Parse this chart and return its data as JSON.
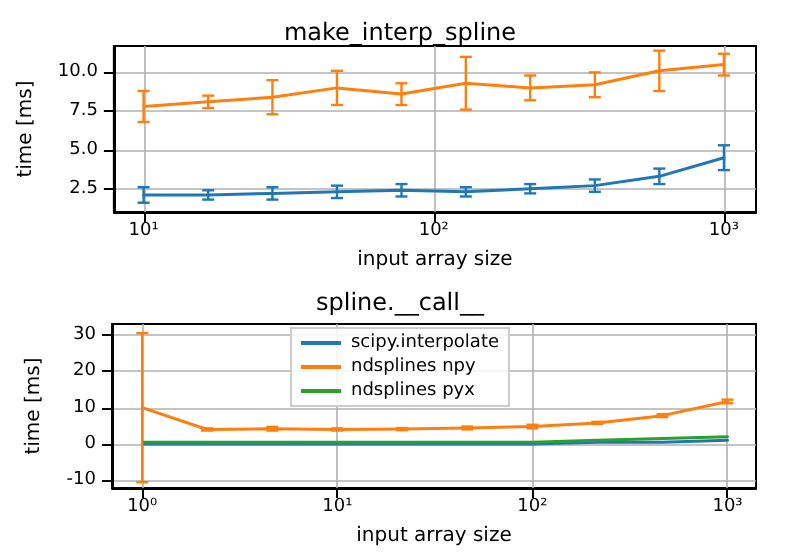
{
  "chart_data": [
    {
      "type": "line",
      "title": "make_interp_spline",
      "xlabel": "input array size",
      "ylabel": "time [ms]",
      "log": "x",
      "grid": true,
      "legend": false,
      "marker": "none",
      "x": [
        10,
        16.7,
        27.8,
        46.4,
        77.4,
        129,
        215,
        359,
        599,
        1000
      ],
      "xlim": [
        7.9,
        1290
      ],
      "xticks": [
        {
          "value": 10,
          "label": "10¹"
        },
        {
          "value": 100,
          "label": "10²"
        },
        {
          "value": 1000,
          "label": "10³"
        }
      ],
      "ylim": [
        1.0,
        11.7
      ],
      "yticks": [
        {
          "value": 2.5,
          "label": "2.5"
        },
        {
          "value": 5,
          "label": "5.0"
        },
        {
          "value": 7.5,
          "label": "7.5"
        },
        {
          "value": 10,
          "label": "10.0"
        }
      ],
      "series": [
        {
          "color": "#1f77b4",
          "values": [
            2.1,
            2.1,
            2.2,
            2.3,
            2.4,
            2.3,
            2.5,
            2.7,
            3.3,
            4.5
          ],
          "errors": [
            0.5,
            0.3,
            0.4,
            0.4,
            0.4,
            0.3,
            0.3,
            0.4,
            0.5,
            0.8
          ]
        },
        {
          "color": "#ff7f0e",
          "values": [
            7.8,
            8.1,
            8.4,
            9.0,
            8.6,
            9.3,
            9.0,
            9.2,
            10.1,
            10.5
          ],
          "errors": [
            1.0,
            0.4,
            1.1,
            1.1,
            0.7,
            1.7,
            0.8,
            0.8,
            1.3,
            0.7
          ]
        }
      ]
    },
    {
      "type": "line",
      "title": "spline.__call__",
      "xlabel": "input array size",
      "ylabel": "time [ms]",
      "log": "x",
      "grid": true,
      "legend": "top",
      "marker": "none",
      "x": [
        1,
        2.15,
        4.64,
        10,
        21.5,
        46.4,
        100,
        215,
        464,
        1000
      ],
      "xlim": [
        0.7,
        1400
      ],
      "xticks": [
        {
          "value": 1,
          "label": "10⁰"
        },
        {
          "value": 10,
          "label": "10¹"
        },
        {
          "value": 100,
          "label": "10²"
        },
        {
          "value": 1000,
          "label": "10³"
        }
      ],
      "ylim": [
        -12.1,
        33
      ],
      "yticks": [
        -10,
        0,
        10,
        20,
        30
      ],
      "series": [
        {
          "name": "scipy.interpolate",
          "color": "#1f77b4",
          "values": [
            0,
            0,
            0,
            0,
            0,
            0,
            0,
            0.5,
            0.5,
            1
          ]
        },
        {
          "name": "ndsplines npy",
          "color": "#ff7f0e",
          "values": [
            10.0,
            4.0,
            4.2,
            4.0,
            4.1,
            4.4,
            4.8,
            5.8,
            7.8,
            11.7
          ],
          "errors": [
            20.5,
            0.3,
            0.5,
            0.3,
            0.3,
            0.4,
            0.5,
            0.3,
            0.4,
            0.5
          ]
        },
        {
          "name": "ndsplines pyx",
          "color": "#2ca02c",
          "values": [
            0.5,
            0.5,
            0.5,
            0.5,
            0.5,
            0.5,
            0.5,
            1,
            1.5,
            2
          ]
        }
      ]
    }
  ]
}
